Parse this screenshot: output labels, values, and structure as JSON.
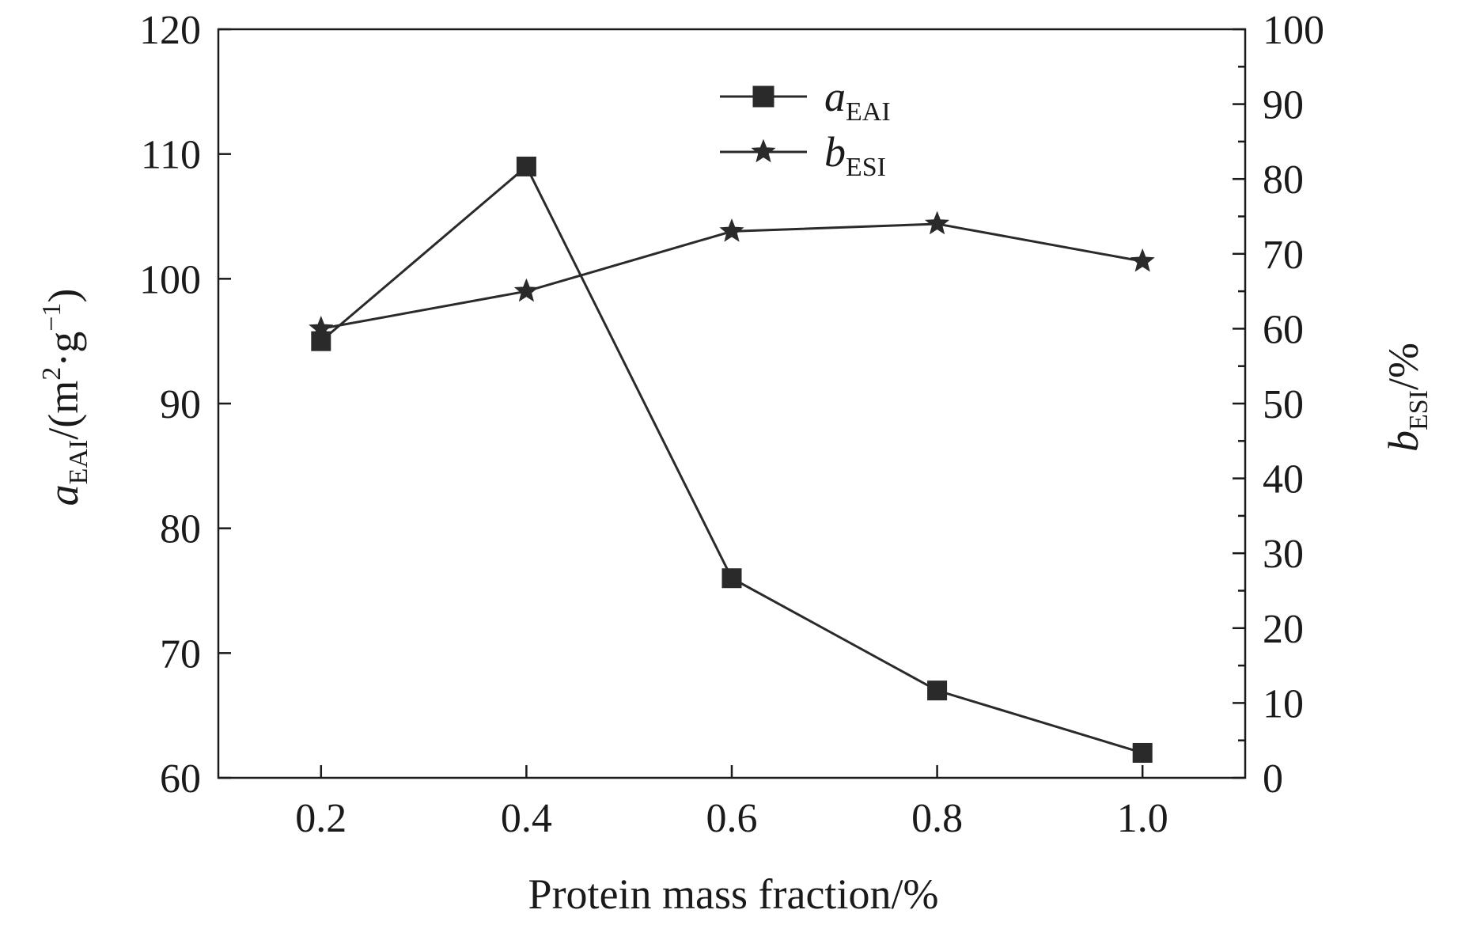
{
  "chart_data": {
    "type": "line",
    "x": [
      0.2,
      0.4,
      0.6,
      0.8,
      1.0
    ],
    "x_tick_labels": [
      "0.2",
      "0.4",
      "0.6",
      "0.8",
      "1.0"
    ],
    "xlim": [
      0.1,
      1.1
    ],
    "xlabel": "Protein mass fraction/%",
    "left_axis": {
      "label_main": "a",
      "label_sub": "EAI",
      "label_rest": "/(m",
      "label_sup1": "2",
      "label_mid": "·g",
      "label_sup2": "−1",
      "label_end": ")",
      "ylim": [
        60,
        120
      ],
      "ticks": [
        60,
        70,
        80,
        90,
        100,
        110,
        120
      ]
    },
    "right_axis": {
      "label_main": "b",
      "label_sub": "ESI",
      "label_rest": "/%",
      "ylim": [
        0,
        100
      ],
      "ticks": [
        0,
        10,
        20,
        30,
        40,
        50,
        60,
        70,
        80,
        90,
        100
      ]
    },
    "series": [
      {
        "name_main": "a",
        "name_sub": "EAI",
        "axis": "left",
        "marker": "square",
        "values": [
          95,
          109,
          76,
          67,
          62
        ]
      },
      {
        "name_main": "b",
        "name_sub": "ESI",
        "axis": "right",
        "marker": "star",
        "values": [
          60,
          65,
          73,
          74,
          69
        ]
      }
    ],
    "legend_position": "top-center"
  }
}
